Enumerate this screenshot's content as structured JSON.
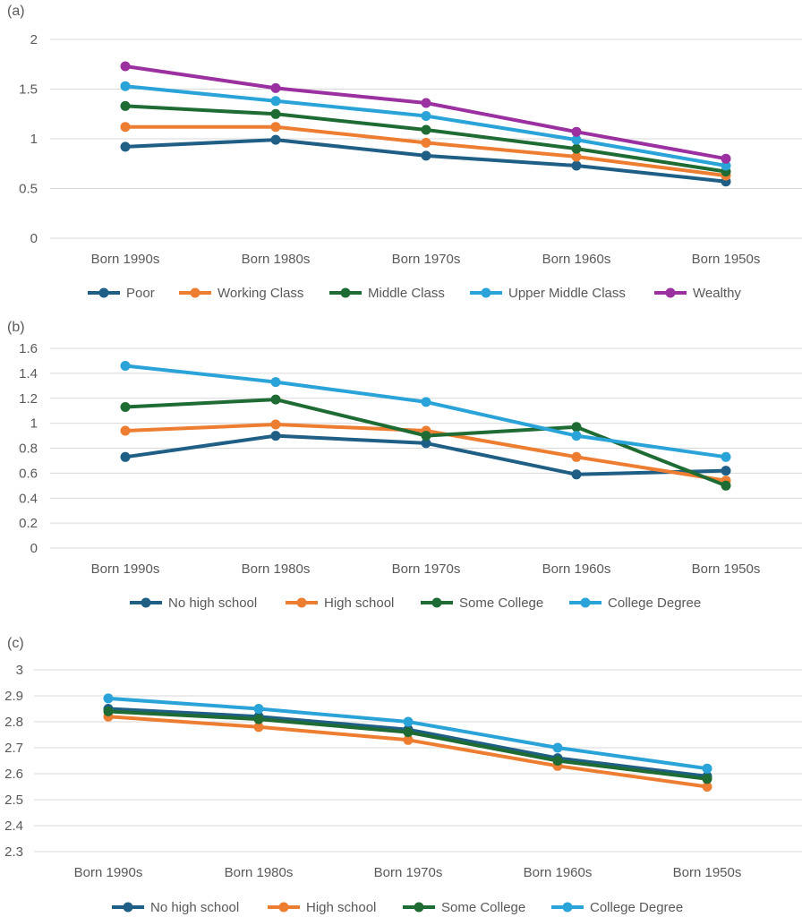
{
  "chart_data": [
    {
      "panel_label": "(a)",
      "type": "line",
      "categories": [
        "Born 1990s",
        "Born 1980s",
        "Born 1970s",
        "Born 1960s",
        "Born 1950s"
      ],
      "yticks": [
        "0",
        "0.5",
        "1",
        "1.5",
        "2"
      ],
      "ylim": [
        0,
        2
      ],
      "grid": true,
      "legend": "bottom",
      "series": [
        {
          "name": "Poor",
          "color": "#1f5f86",
          "values": [
            0.92,
            0.99,
            0.83,
            0.73,
            0.57
          ]
        },
        {
          "name": "Working Class",
          "color": "#ed7d31",
          "values": [
            1.12,
            1.12,
            0.96,
            0.82,
            0.63
          ]
        },
        {
          "name": "Middle Class",
          "color": "#1e6b33",
          "values": [
            1.33,
            1.25,
            1.09,
            0.9,
            0.67
          ]
        },
        {
          "name": "Upper Middle Class",
          "color": "#2aa3d8",
          "values": [
            1.53,
            1.38,
            1.23,
            0.99,
            0.73
          ]
        },
        {
          "name": "Wealthy",
          "color": "#9b30a0",
          "values": [
            1.73,
            1.51,
            1.36,
            1.07,
            0.8
          ]
        }
      ]
    },
    {
      "panel_label": "(b)",
      "type": "line",
      "categories": [
        "Born 1990s",
        "Born 1980s",
        "Born 1970s",
        "Born 1960s",
        "Born 1950s"
      ],
      "yticks": [
        "0",
        "0.2",
        "0.4",
        "0.6",
        "0.8",
        "1",
        "1.2",
        "1.4",
        "1.6"
      ],
      "ylim": [
        0,
        1.6
      ],
      "grid": true,
      "legend": "bottom",
      "series": [
        {
          "name": "No high school",
          "color": "#1f5f86",
          "values": [
            0.73,
            0.9,
            0.84,
            0.59,
            0.62
          ]
        },
        {
          "name": "High school",
          "color": "#ed7d31",
          "values": [
            0.94,
            0.99,
            0.94,
            0.73,
            0.54
          ]
        },
        {
          "name": "Some College",
          "color": "#1e6b33",
          "values": [
            1.13,
            1.19,
            0.9,
            0.97,
            0.5
          ]
        },
        {
          "name": "College Degree",
          "color": "#2aa3d8",
          "values": [
            1.46,
            1.33,
            1.17,
            0.9,
            0.73
          ]
        }
      ]
    },
    {
      "panel_label": "(c)",
      "type": "line",
      "categories": [
        "Born 1990s",
        "Born 1980s",
        "Born 1970s",
        "Born 1960s",
        "Born 1950s"
      ],
      "yticks": [
        "2.3",
        "2.4",
        "2.5",
        "2.6",
        "2.7",
        "2.8",
        "2.9",
        "3"
      ],
      "ylim": [
        2.3,
        3
      ],
      "grid": true,
      "legend": "bottom",
      "series": [
        {
          "name": "No high school",
          "color": "#1f5f86",
          "values": [
            2.85,
            2.82,
            2.77,
            2.66,
            2.59
          ]
        },
        {
          "name": "High school",
          "color": "#ed7d31",
          "values": [
            2.82,
            2.78,
            2.73,
            2.63,
            2.55
          ]
        },
        {
          "name": "Some College",
          "color": "#1e6b33",
          "values": [
            2.84,
            2.81,
            2.76,
            2.65,
            2.58
          ]
        },
        {
          "name": "College Degree",
          "color": "#2aa3d8",
          "values": [
            2.89,
            2.85,
            2.8,
            2.7,
            2.62
          ]
        }
      ]
    }
  ]
}
